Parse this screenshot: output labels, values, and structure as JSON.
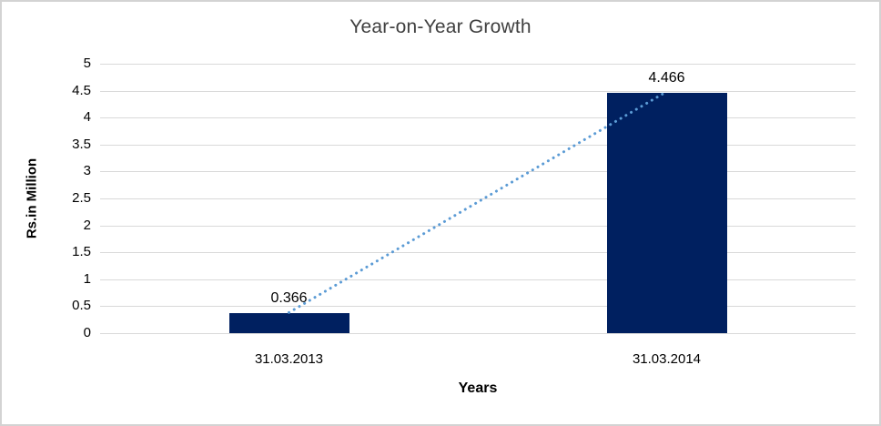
{
  "chart_data": {
    "type": "bar",
    "title": "Year-on-Year Growth",
    "xlabel": "Years",
    "ylabel": "Rs.in Million",
    "categories": [
      "31.03.2013",
      "31.03.2014"
    ],
    "values": [
      0.366,
      4.466
    ],
    "data_labels": [
      "0.366",
      "4.466"
    ],
    "ylim": [
      0,
      5
    ],
    "ytick_step": 0.5,
    "yticks": [
      {
        "value": 0,
        "label": "0"
      },
      {
        "value": 0.5,
        "label": "0.5"
      },
      {
        "value": 1,
        "label": "1"
      },
      {
        "value": 1.5,
        "label": "1.5"
      },
      {
        "value": 2,
        "label": "2"
      },
      {
        "value": 2.5,
        "label": "2.5"
      },
      {
        "value": 3,
        "label": "3"
      },
      {
        "value": 3.5,
        "label": "3.5"
      },
      {
        "value": 4,
        "label": "4"
      },
      {
        "value": 4.5,
        "label": "4.5"
      },
      {
        "value": 5,
        "label": "5"
      }
    ],
    "grid": "horizontal",
    "legend": "none",
    "trendline": {
      "style": "dotted",
      "from_category_index": 0,
      "from_value": 0.366,
      "to_category_index": 1,
      "to_value": 4.466
    },
    "colors": {
      "bar": "#002060",
      "trendline": "#5b9bd5",
      "gridline": "#d9d9d9",
      "frame_border": "#d3d3d3",
      "title_text": "#3f3f3f",
      "label_text": "#000000"
    }
  }
}
